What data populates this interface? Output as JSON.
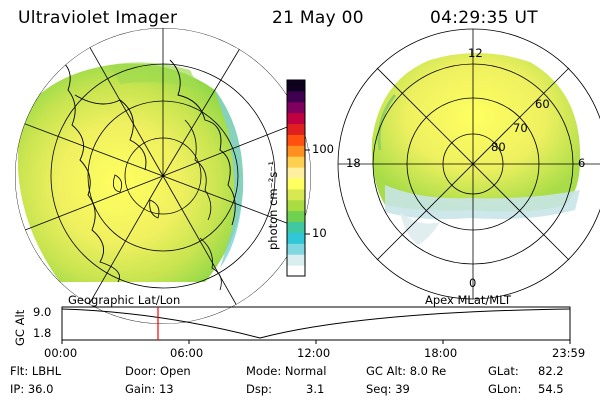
{
  "header": {
    "title": "Ultraviolet Imager",
    "date": "21 May 00",
    "time": "04:29:35 UT"
  },
  "colorbar": {
    "unit_label": "photon cm⁻²s⁻¹",
    "tick_100": "100",
    "tick_10": "10",
    "colors": [
      "#ffffff",
      "#d8eef0",
      "#80d8e0",
      "#30c8d8",
      "#40c8a0",
      "#70d050",
      "#a8dc40",
      "#d8e850",
      "#ffff60",
      "#fff0a0",
      "#ffd050",
      "#ff9020",
      "#ff5010",
      "#e02020",
      "#c00040",
      "#800060",
      "#400050",
      "#100020"
    ]
  },
  "maps": {
    "left_frame_label": "Geographic Lat/Lon",
    "right_frame_label": "Apex MLat/MLT",
    "mlt_12": "12",
    "mlt_18": "18",
    "mlt_6": "6",
    "mlt_0": "0",
    "mlat_60": "60",
    "mlat_70": "70",
    "mlat_80": "80"
  },
  "altitude_plot": {
    "axis_label": "GC Alt",
    "y_top": "9.0",
    "y_bottom": "1.8",
    "x_ticks": [
      "00:00",
      "06:00",
      "12:00",
      "18:00",
      "23:59"
    ],
    "marker_color": "#ff0000"
  },
  "info": {
    "filter": "Flt: LBHL",
    "ip": "IP: 36.0",
    "door": "Door: Open",
    "gain": "Gain: 13",
    "mode": "Mode: Normal",
    "dsp_label": "Dsp:",
    "dsp_value": "3.1",
    "gc_alt": "GC Alt: 8.0 Re",
    "seq": "Seq: 39",
    "glat_label": "GLat:",
    "glat_value": "82.2",
    "glon_label": "GLon:",
    "glon_value": "54.5"
  }
}
